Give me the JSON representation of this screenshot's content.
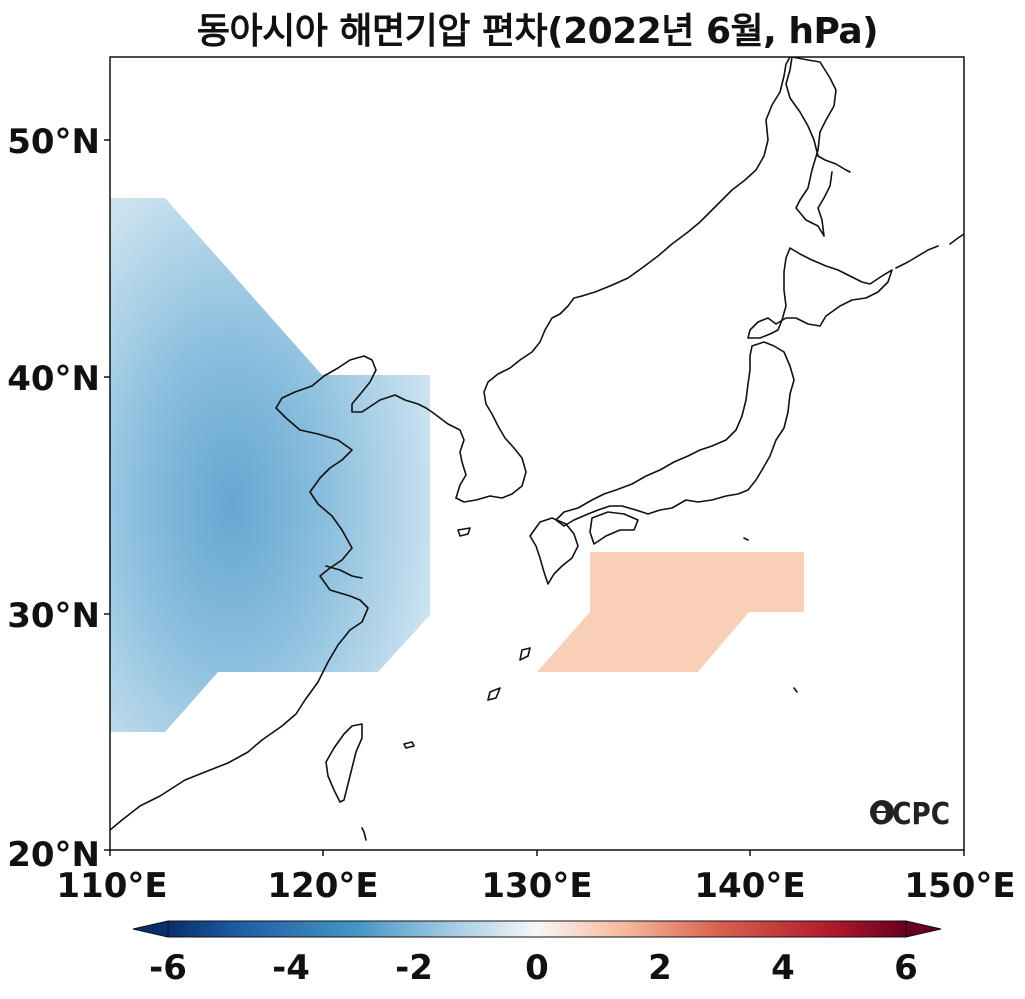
{
  "title": "동아시아 해면기압 편차(2022년 6월, hPa)",
  "logo": "OCPC",
  "map": {
    "lon_range": [
      110,
      150
    ],
    "lat_range": [
      20,
      53.5
    ],
    "lat_ticks": [
      "20°N",
      "30°N",
      "40°N",
      "50°N"
    ],
    "lon_ticks": [
      "110°E",
      "120°E",
      "130°E",
      "140°E",
      "150°E"
    ]
  },
  "colorbar": {
    "range": [
      -6,
      6
    ],
    "ticks": [
      "-6",
      "-4",
      "-2",
      "0",
      "2",
      "4",
      "6"
    ],
    "extend": "both",
    "colormap": "RdBu_r"
  },
  "anomaly_regions": [
    {
      "name": "negative-anomaly-west",
      "sign": "negative",
      "min_value": -2.5
    },
    {
      "name": "positive-anomaly-east",
      "sign": "positive",
      "max_value": 1.2
    }
  ]
}
